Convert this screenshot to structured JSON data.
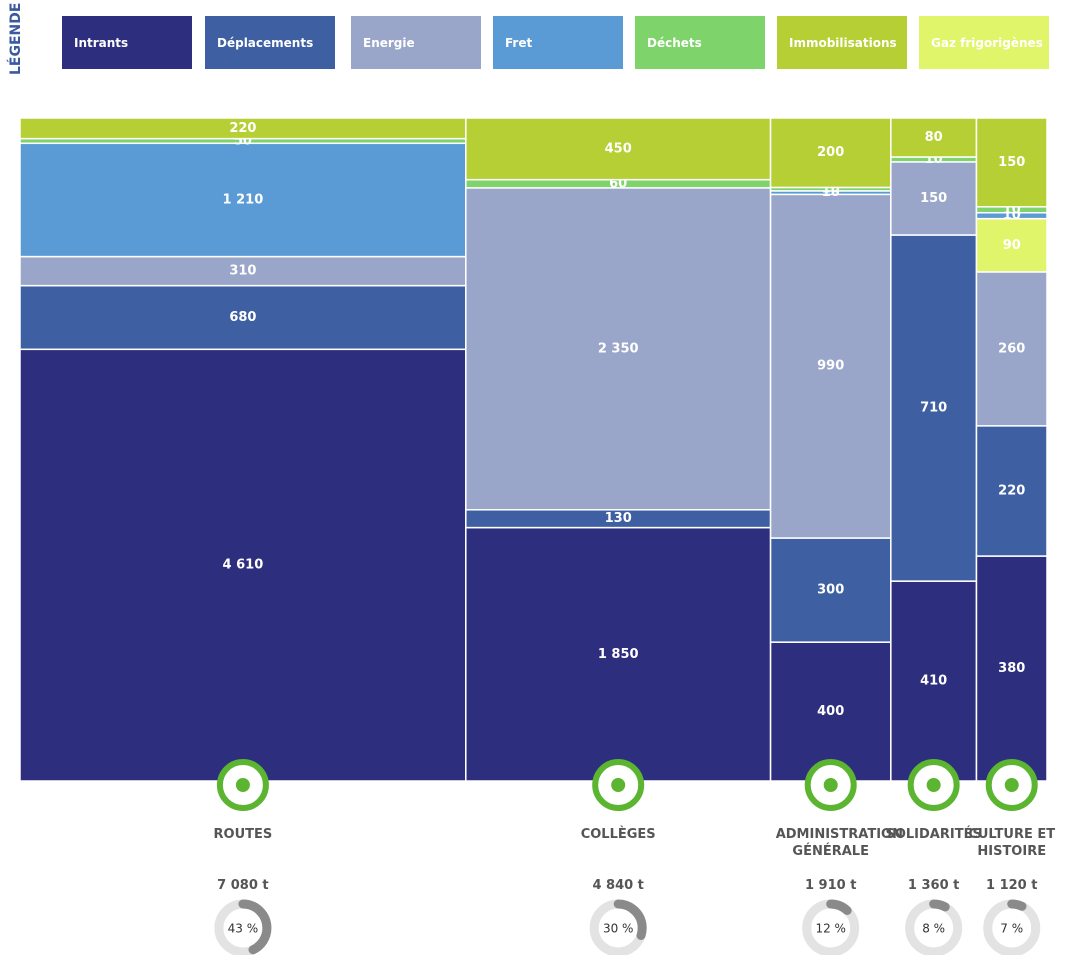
{
  "chart_data": {
    "type": "mekko",
    "legend_title": "LÉGENDE",
    "categories": [
      "ROUTES",
      "COLLÈGES",
      "ADMINISTRATION GÉNÉRALE",
      "SOLIDARITÉS",
      "CULTURE ET HISTOIRE"
    ],
    "totals": [
      7080,
      4840,
      1910,
      1360,
      1120
    ],
    "total_labels": [
      "7 080 t",
      "4 840 t",
      "1 910 t",
      "1 360 t",
      "1 120 t"
    ],
    "shares": [
      43,
      30,
      12,
      8,
      7
    ],
    "share_labels": [
      "43 %",
      "30 %",
      "12 %",
      "8 %",
      "7 %"
    ],
    "series": [
      {
        "name": "Intrants",
        "color": "#2e2e7e",
        "values": [
          4610,
          1850,
          400,
          410,
          380
        ],
        "value_labels": [
          "4 610",
          "1 850",
          "400",
          "410",
          "380"
        ]
      },
      {
        "name": "Déplacements",
        "color": "#3f5fa3",
        "values": [
          680,
          130,
          300,
          710,
          220
        ],
        "value_labels": [
          "680",
          "130",
          "300",
          "710",
          "220"
        ]
      },
      {
        "name": "Energie",
        "color": "#9aa6c9",
        "values": [
          310,
          2350,
          990,
          150,
          260
        ],
        "value_labels": [
          "310",
          "2 350",
          "990",
          "150",
          "260"
        ]
      },
      {
        "name": "Fret",
        "color": "#5b9bd5",
        "values": [
          1210,
          0,
          10,
          0,
          10
        ],
        "value_labels": [
          "1 210",
          "0",
          "10",
          "0",
          "10"
        ]
      },
      {
        "name": "Déchets",
        "color": "#7ed36a",
        "values": [
          50,
          60,
          10,
          10,
          10
        ],
        "value_labels": [
          "50",
          "60",
          "10",
          "10",
          "10"
        ]
      },
      {
        "name": "Immobilisations",
        "color": "#b5cf35",
        "values": [
          220,
          450,
          200,
          80,
          150
        ],
        "value_labels": [
          "220",
          "450",
          "200",
          "80",
          "150"
        ]
      },
      {
        "name": "Gaz frigorigènes",
        "color": "#e0f56a",
        "values": [
          0,
          0,
          0,
          0,
          90
        ],
        "value_labels": [
          "0",
          "0",
          "0",
          "0",
          "90"
        ]
      }
    ]
  }
}
